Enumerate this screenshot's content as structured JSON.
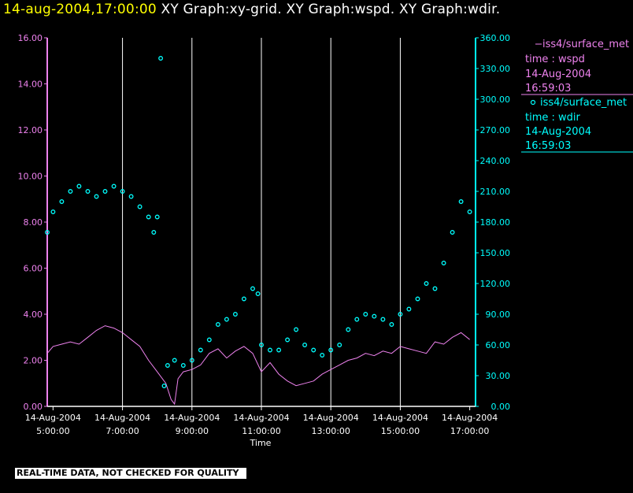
{
  "header": {
    "date_time": "14-aug-2004,17:00:00",
    "graphs": "XY Graph:xy-grid.  XY Graph:wspd.  XY Graph:wdir."
  },
  "notice": "REAL-TIME DATA, NOT CHECKED FOR QUALITY",
  "colors": {
    "background": "#000000",
    "wspd": "#ee82ee",
    "wdir": "#00ffff",
    "grid": "#ffffff",
    "date": "#ffff00"
  },
  "chart_data": {
    "type": "line",
    "xlabel": "Time",
    "x_range_hours": [
      4.833,
      17.167
    ],
    "x_ticks": [
      {
        "hour": 5,
        "date": "14-Aug-2004",
        "time": "5:00:00"
      },
      {
        "hour": 7,
        "date": "14-Aug-2004",
        "time": "7:00:00"
      },
      {
        "hour": 9,
        "date": "14-Aug-2004",
        "time": "9:00:00"
      },
      {
        "hour": 11,
        "date": "14-Aug-2004",
        "time": "11:00:00"
      },
      {
        "hour": 13,
        "date": "14-Aug-2004",
        "time": "13:00:00"
      },
      {
        "hour": 15,
        "date": "14-Aug-2004",
        "time": "15:00:00"
      },
      {
        "hour": 17,
        "date": "14-Aug-2004",
        "time": "17:00:00"
      }
    ],
    "grid": "vertical",
    "y_left": {
      "ylim": [
        0,
        16
      ],
      "ticks": [
        "0.00",
        "2.00",
        "4.00",
        "6.00",
        "8.00",
        "10.00",
        "12.00",
        "14.00",
        "16.00"
      ]
    },
    "y_right": {
      "ylim": [
        0,
        360
      ],
      "ticks": [
        "0.00",
        "30.00",
        "60.00",
        "90.00",
        "120.00",
        "150.00",
        "180.00",
        "210.00",
        "240.00",
        "270.00",
        "300.00",
        "330.00",
        "360.00"
      ]
    },
    "legend_position": "right",
    "series": [
      {
        "name": "iss4/surface_met",
        "field": "time : wspd",
        "date": "14-Aug-2004",
        "time": "16:59:03",
        "style": "line",
        "axis": "left",
        "points": [
          [
            4.833,
            2.3
          ],
          [
            5.0,
            2.6
          ],
          [
            5.25,
            2.7
          ],
          [
            5.5,
            2.8
          ],
          [
            5.75,
            2.7
          ],
          [
            6.0,
            3.0
          ],
          [
            6.25,
            3.3
          ],
          [
            6.5,
            3.5
          ],
          [
            6.75,
            3.4
          ],
          [
            7.0,
            3.2
          ],
          [
            7.25,
            2.9
          ],
          [
            7.5,
            2.6
          ],
          [
            7.75,
            2.0
          ],
          [
            8.0,
            1.5
          ],
          [
            8.25,
            1.0
          ],
          [
            8.4,
            0.3
          ],
          [
            8.5,
            0.1
          ],
          [
            8.6,
            1.2
          ],
          [
            8.75,
            1.5
          ],
          [
            9.0,
            1.6
          ],
          [
            9.25,
            1.8
          ],
          [
            9.5,
            2.3
          ],
          [
            9.75,
            2.5
          ],
          [
            10.0,
            2.1
          ],
          [
            10.25,
            2.4
          ],
          [
            10.5,
            2.6
          ],
          [
            10.75,
            2.3
          ],
          [
            11.0,
            1.5
          ],
          [
            11.25,
            1.9
          ],
          [
            11.5,
            1.4
          ],
          [
            11.75,
            1.1
          ],
          [
            12.0,
            0.9
          ],
          [
            12.25,
            1.0
          ],
          [
            12.5,
            1.1
          ],
          [
            12.75,
            1.4
          ],
          [
            13.0,
            1.6
          ],
          [
            13.25,
            1.8
          ],
          [
            13.5,
            2.0
          ],
          [
            13.75,
            2.1
          ],
          [
            14.0,
            2.3
          ],
          [
            14.25,
            2.2
          ],
          [
            14.5,
            2.4
          ],
          [
            14.75,
            2.3
          ],
          [
            15.0,
            2.6
          ],
          [
            15.25,
            2.5
          ],
          [
            15.5,
            2.4
          ],
          [
            15.75,
            2.3
          ],
          [
            16.0,
            2.8
          ],
          [
            16.25,
            2.7
          ],
          [
            16.5,
            3.0
          ],
          [
            16.75,
            3.2
          ],
          [
            17.0,
            2.9
          ]
        ]
      },
      {
        "name": "iss4/surface_met",
        "field": "time : wdir",
        "date": "14-Aug-2004",
        "time": "16:59:03",
        "style": "scatter",
        "axis": "right",
        "points": [
          [
            4.833,
            170
          ],
          [
            5.0,
            190
          ],
          [
            5.25,
            200
          ],
          [
            5.5,
            210
          ],
          [
            5.75,
            215
          ],
          [
            6.0,
            210
          ],
          [
            6.25,
            205
          ],
          [
            6.5,
            210
          ],
          [
            6.75,
            215
          ],
          [
            7.0,
            210
          ],
          [
            7.25,
            205
          ],
          [
            7.5,
            195
          ],
          [
            7.75,
            185
          ],
          [
            7.9,
            170
          ],
          [
            8.0,
            185
          ],
          [
            8.1,
            340
          ],
          [
            8.2,
            20
          ],
          [
            8.3,
            40
          ],
          [
            8.5,
            45
          ],
          [
            8.75,
            40
          ],
          [
            9.0,
            45
          ],
          [
            9.25,
            55
          ],
          [
            9.5,
            65
          ],
          [
            9.75,
            80
          ],
          [
            10.0,
            85
          ],
          [
            10.25,
            90
          ],
          [
            10.5,
            105
          ],
          [
            10.75,
            115
          ],
          [
            10.9,
            110
          ],
          [
            11.0,
            60
          ],
          [
            11.25,
            55
          ],
          [
            11.5,
            55
          ],
          [
            11.75,
            65
          ],
          [
            12.0,
            75
          ],
          [
            12.25,
            60
          ],
          [
            12.5,
            55
          ],
          [
            12.75,
            50
          ],
          [
            13.0,
            55
          ],
          [
            13.25,
            60
          ],
          [
            13.5,
            75
          ],
          [
            13.75,
            85
          ],
          [
            14.0,
            90
          ],
          [
            14.25,
            88
          ],
          [
            14.5,
            85
          ],
          [
            14.75,
            80
          ],
          [
            15.0,
            90
          ],
          [
            15.25,
            95
          ],
          [
            15.5,
            105
          ],
          [
            15.75,
            120
          ],
          [
            16.0,
            115
          ],
          [
            16.25,
            140
          ],
          [
            16.5,
            170
          ],
          [
            16.75,
            200
          ],
          [
            17.0,
            190
          ]
        ]
      }
    ]
  }
}
